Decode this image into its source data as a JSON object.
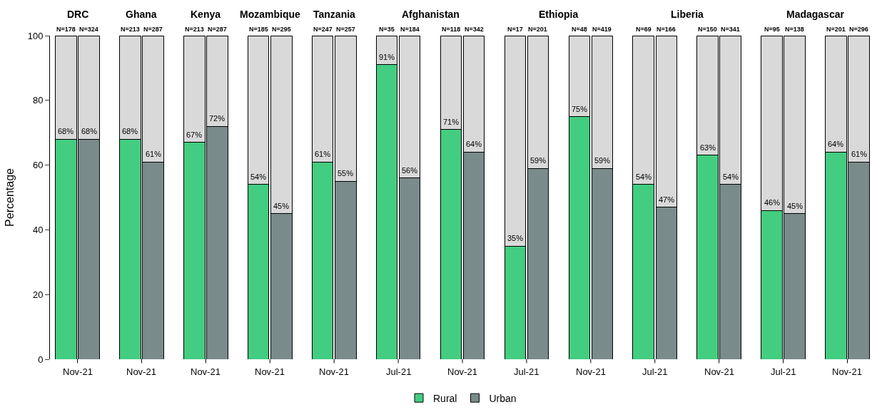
{
  "chart_data": {
    "type": "bar",
    "stacked": true,
    "ylabel": "Percentage",
    "categories": [
      null,
      null,
      null,
      null,
      null,
      null,
      null,
      null,
      null,
      null,
      null,
      null,
      null,
      null,
      null,
      null,
      null,
      null,
      null,
      null,
      null,
      null,
      null,
      null,
      null,
      null
    ],
    "series": [
      {
        "name": "Rural",
        "color": "#43cd80",
        "values": [
          68,
          null,
          68,
          null,
          67,
          null,
          54,
          null,
          61,
          null,
          91,
          null,
          71,
          null,
          35,
          null,
          75,
          null,
          54,
          null,
          63,
          null,
          46,
          null,
          64,
          null
        ],
        "value_labels": [
          "68%",
          null,
          "68%",
          null,
          "67%",
          null,
          "54%",
          null,
          "61%",
          null,
          "91%",
          null,
          "71%",
          null,
          "35%",
          null,
          "75%",
          null,
          "54%",
          null,
          "63%",
          null,
          "46%",
          null,
          "64%",
          null
        ]
      },
      {
        "name": "Urban",
        "color": "#7a8b8b",
        "values": [
          null,
          68,
          null,
          61,
          null,
          72,
          null,
          45,
          null,
          55,
          null,
          56,
          null,
          64,
          null,
          59,
          null,
          59,
          null,
          47,
          null,
          54,
          null,
          45,
          null,
          61
        ],
        "value_labels": [
          null,
          "68%",
          null,
          "61%",
          null,
          "72%",
          null,
          "45%",
          null,
          "55%",
          null,
          "56%",
          null,
          "64%",
          null,
          "59%",
          null,
          "59%",
          null,
          "47%",
          null,
          "54%",
          null,
          "45%",
          null,
          "61%"
        ]
      },
      {
        "color": "#d9d9d9",
        "values": [
          32,
          32,
          32,
          39,
          33,
          28,
          46,
          55,
          39,
          45,
          9,
          44,
          29,
          36,
          65,
          41,
          25,
          41,
          46,
          53,
          37,
          46,
          54,
          55,
          36,
          39
        ]
      }
    ],
    "ylim": [
      0,
      100
    ],
    "yticks": [
      0,
      20,
      40,
      60,
      80,
      100
    ],
    "grid": false,
    "legend": "bottom",
    "annotations": [
      "DRC",
      "Ghana",
      "Kenya",
      "Mozambique",
      "Tanzania",
      "Afghanistan",
      "Ethiopia",
      "Liberia",
      "Madagascar",
      "Nov-21",
      "Nov-21",
      "Nov-21",
      "Nov-21",
      "Nov-21",
      "Jul-21",
      "Nov-21",
      "Jul-21",
      "Nov-21",
      "Jul-21",
      "Nov-21",
      "Jul-21",
      "Nov-21",
      "N=178",
      "N=324",
      "N=213",
      "N=287",
      "N=213",
      "N=287",
      "N=185",
      "N=295",
      "N=247",
      "N=257",
      "N=35",
      "N=184",
      "N=118",
      "N=342",
      "N=17",
      "N=201",
      "N=48",
      "N=419",
      "N=69",
      "N=166",
      "N=150",
      "N=341",
      "N=95",
      "N=138",
      "N=201",
      "N=296"
    ]
  }
}
